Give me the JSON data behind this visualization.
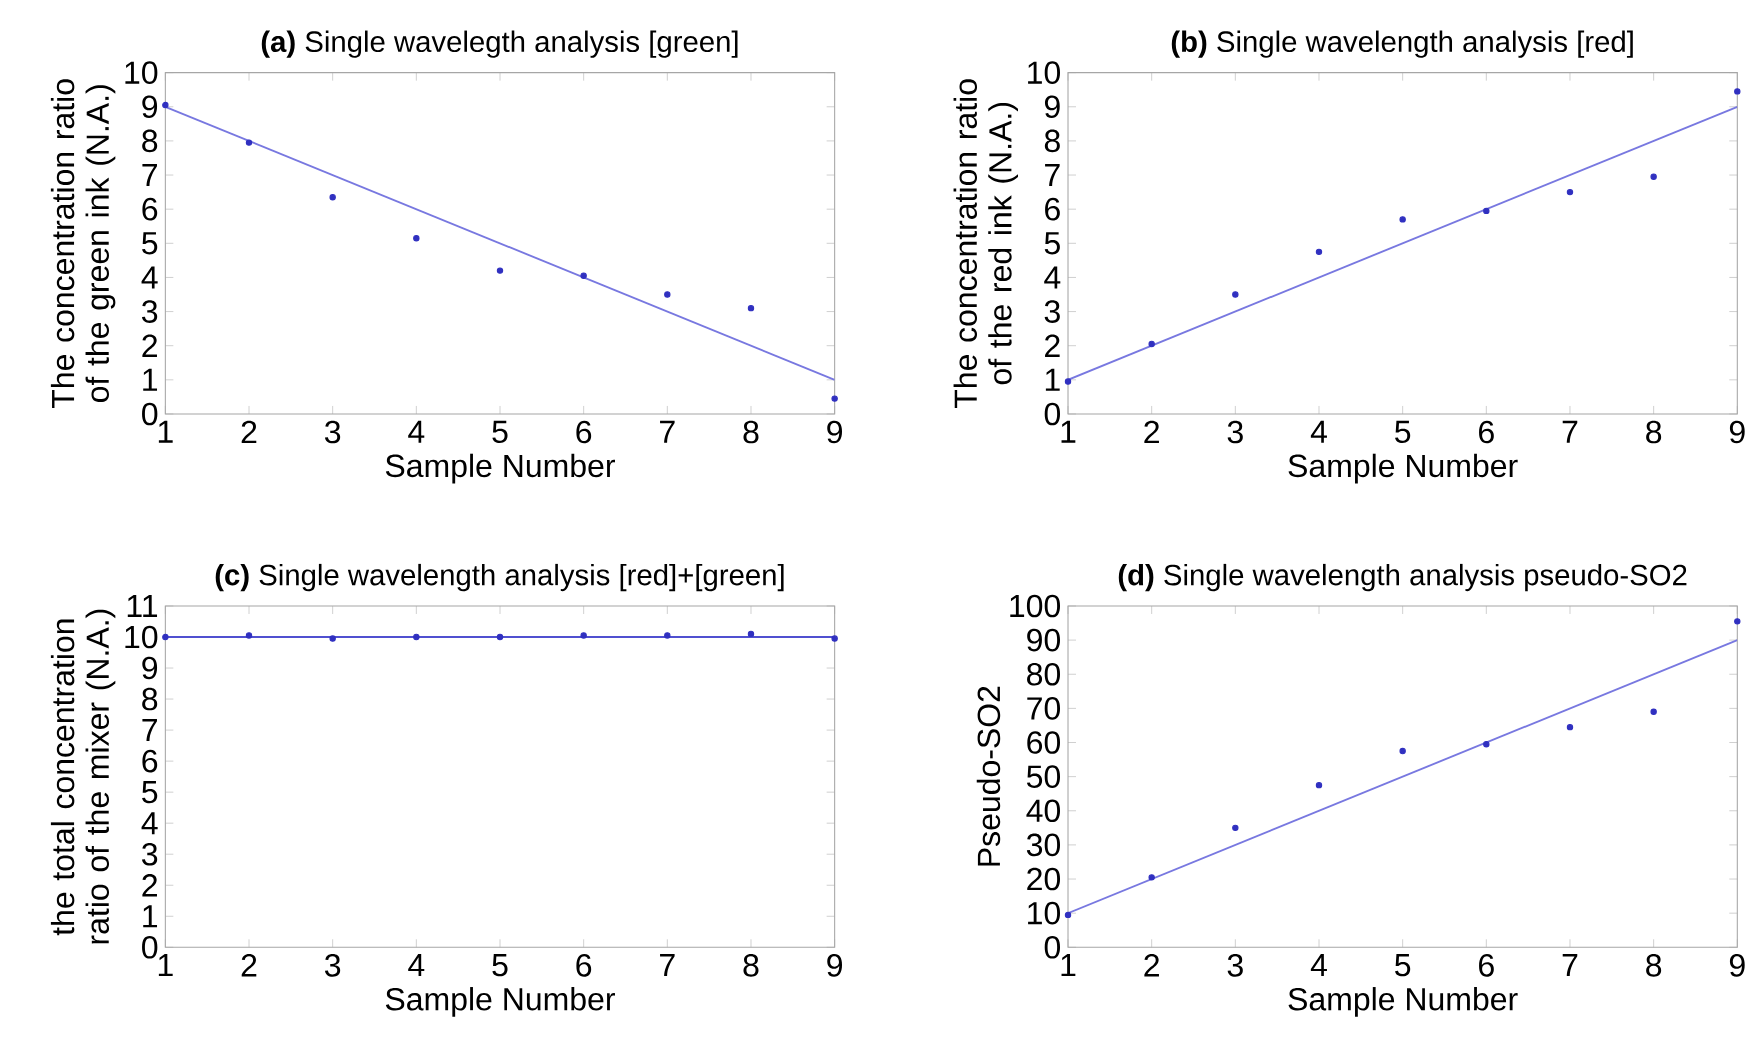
{
  "chart_data": [
    {
      "type": "scatter",
      "title": "**(a)** Single wavelegth analysis [green]",
      "xlabel": "Sample Number",
      "ylabel": "The concentration ratio of the green ink (N.A.)",
      "xlim": [
        1,
        9
      ],
      "xticks": [
        1,
        2,
        3,
        4,
        5,
        6,
        7,
        8,
        9
      ],
      "ylim": [
        0,
        10
      ],
      "yticks": [
        0,
        1,
        2,
        3,
        4,
        5,
        6,
        7,
        8,
        9,
        10
      ],
      "series": [
        {
          "type": "scatter",
          "marker": "circle",
          "color": "#3030c0",
          "x": [
            1,
            2,
            3,
            4,
            5,
            6,
            7,
            8,
            9
          ],
          "values": [
            9.05,
            7.95,
            6.35,
            5.15,
            4.2,
            4.05,
            3.5,
            3.1,
            0.45
          ]
        },
        {
          "type": "line",
          "color": "#7878e0",
          "x": [
            1,
            9
          ],
          "values": [
            9,
            1
          ]
        }
      ]
    },
    {
      "type": "scatter",
      "title": "**(b)** Single wavelength analysis [red]",
      "xlabel": "Sample Number",
      "ylabel": "The concentration ratio of the red ink (N.A.)",
      "xlim": [
        1,
        9
      ],
      "xticks": [
        1,
        2,
        3,
        4,
        5,
        6,
        7,
        8,
        9
      ],
      "ylim": [
        0,
        10
      ],
      "yticks": [
        0,
        1,
        2,
        3,
        4,
        5,
        6,
        7,
        8,
        9,
        10
      ],
      "series": [
        {
          "type": "scatter",
          "marker": "circle",
          "color": "#3030c0",
          "x": [
            1,
            2,
            3,
            4,
            5,
            6,
            7,
            8,
            9
          ],
          "values": [
            0.95,
            2.05,
            3.5,
            4.75,
            5.7,
            5.95,
            6.5,
            6.95,
            9.45
          ]
        },
        {
          "type": "line",
          "color": "#7878e0",
          "x": [
            1,
            9
          ],
          "values": [
            1,
            9
          ]
        }
      ]
    },
    {
      "type": "scatter",
      "title": "**(c)** Single wavelength analysis [red]+[green]",
      "xlabel": "Sample Number",
      "ylabel": "the total concentration ratio of the mixer (N.A.)",
      "xlim": [
        1,
        9
      ],
      "xticks": [
        1,
        2,
        3,
        4,
        5,
        6,
        7,
        8,
        9
      ],
      "ylim": [
        0,
        11
      ],
      "yticks": [
        0,
        1,
        2,
        3,
        4,
        5,
        6,
        7,
        8,
        9,
        10,
        11
      ],
      "series": [
        {
          "type": "scatter",
          "marker": "circle",
          "color": "#3030c0",
          "x": [
            1,
            2,
            3,
            4,
            5,
            6,
            7,
            8,
            9
          ],
          "values": [
            10,
            10.05,
            9.95,
            10,
            10,
            10.05,
            10.05,
            10.1,
            9.95
          ]
        },
        {
          "type": "line",
          "color": "#5050d0",
          "x": [
            1,
            9
          ],
          "values": [
            10,
            10
          ]
        }
      ]
    },
    {
      "type": "scatter",
      "title": "**(d)** Single wavelength analysis pseudo-SO2",
      "xlabel": "Sample Number",
      "ylabel": "Pseudo-SO2",
      "xlim": [
        1,
        9
      ],
      "xticks": [
        1,
        2,
        3,
        4,
        5,
        6,
        7,
        8,
        9
      ],
      "ylim": [
        0,
        100
      ],
      "yticks": [
        0,
        10,
        20,
        30,
        40,
        50,
        60,
        70,
        80,
        90,
        100
      ],
      "series": [
        {
          "type": "scatter",
          "marker": "circle",
          "color": "#3030c0",
          "x": [
            1,
            2,
            3,
            4,
            5,
            6,
            7,
            8,
            9
          ],
          "values": [
            9.5,
            20.5,
            35,
            47.5,
            57.5,
            59.5,
            64.5,
            69,
            95.5
          ]
        },
        {
          "type": "line",
          "color": "#7878e0",
          "x": [
            1,
            9
          ],
          "values": [
            10,
            90
          ]
        }
      ]
    }
  ]
}
